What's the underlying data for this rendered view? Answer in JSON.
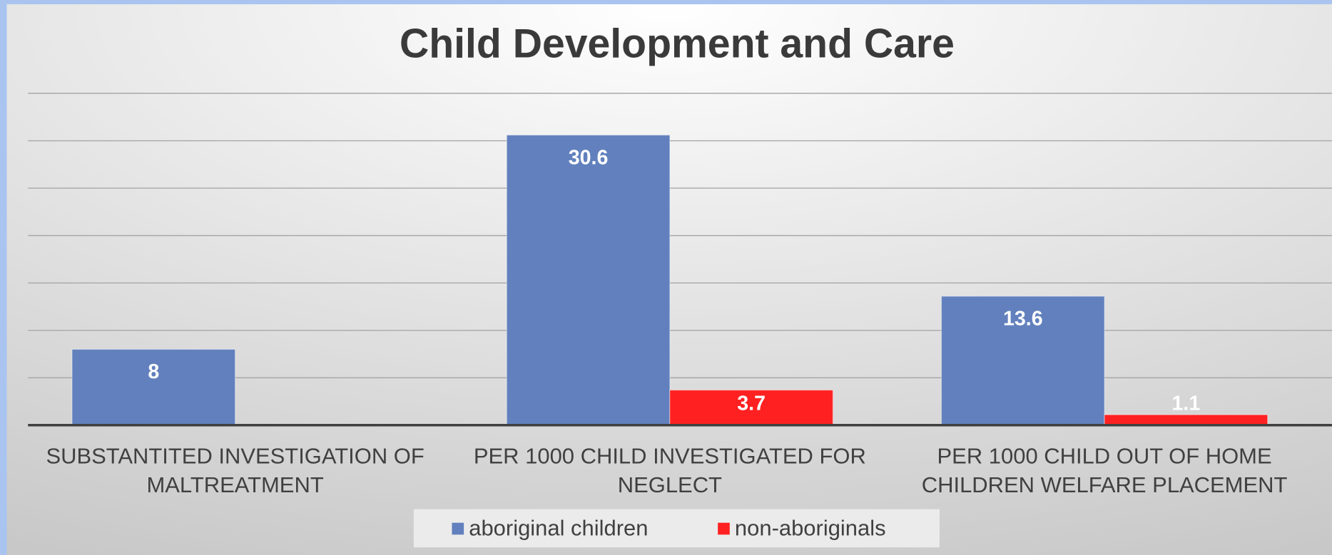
{
  "chart_data": {
    "type": "bar",
    "title": "Child Development and Care",
    "categories": [
      "SUBSTANTITED INVESTIGATION OF MALTREATMENT",
      "PER 1000 CHILD INVESTIGATED FOR NEGLECT",
      "PER 1000 CHILD OUT OF HOME CHILDREN WELFARE PLACEMENT"
    ],
    "series": [
      {
        "name": "aboriginal children",
        "color": "#6180bd",
        "values": [
          8,
          30.6,
          13.6
        ]
      },
      {
        "name": "non-aboriginals",
        "color": "#ff2121",
        "values": [
          null,
          3.7,
          1.1
        ]
      }
    ],
    "ylim": [
      0,
      35
    ],
    "yticks": [
      0,
      5,
      10,
      15,
      20,
      25,
      30,
      35
    ],
    "grid": true
  }
}
